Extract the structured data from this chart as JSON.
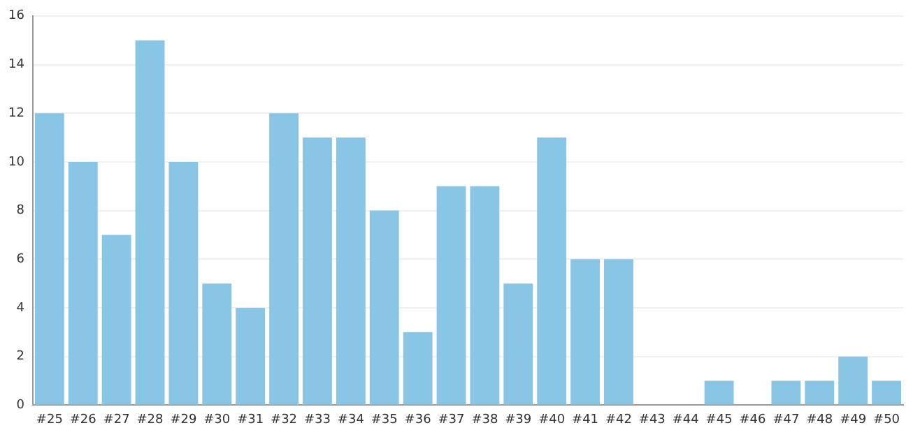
{
  "chart_data": {
    "type": "bar",
    "categories": [
      "#25",
      "#26",
      "#27",
      "#28",
      "#29",
      "#30",
      "#31",
      "#32",
      "#33",
      "#34",
      "#35",
      "#36",
      "#37",
      "#38",
      "#39",
      "#40",
      "#41",
      "#42",
      "#43",
      "#44",
      "#45",
      "#46",
      "#47",
      "#48",
      "#49",
      "#50"
    ],
    "values": [
      12,
      10,
      7,
      15,
      10,
      5,
      4,
      12,
      11,
      11,
      8,
      3,
      9,
      9,
      5,
      11,
      6,
      6,
      0,
      0,
      1,
      0,
      1,
      1,
      2,
      1
    ],
    "color": "#89c5e5",
    "ylim": [
      0,
      16
    ],
    "yticks": [
      0,
      2,
      4,
      6,
      8,
      10,
      12,
      14,
      16
    ],
    "grid": "y"
  }
}
